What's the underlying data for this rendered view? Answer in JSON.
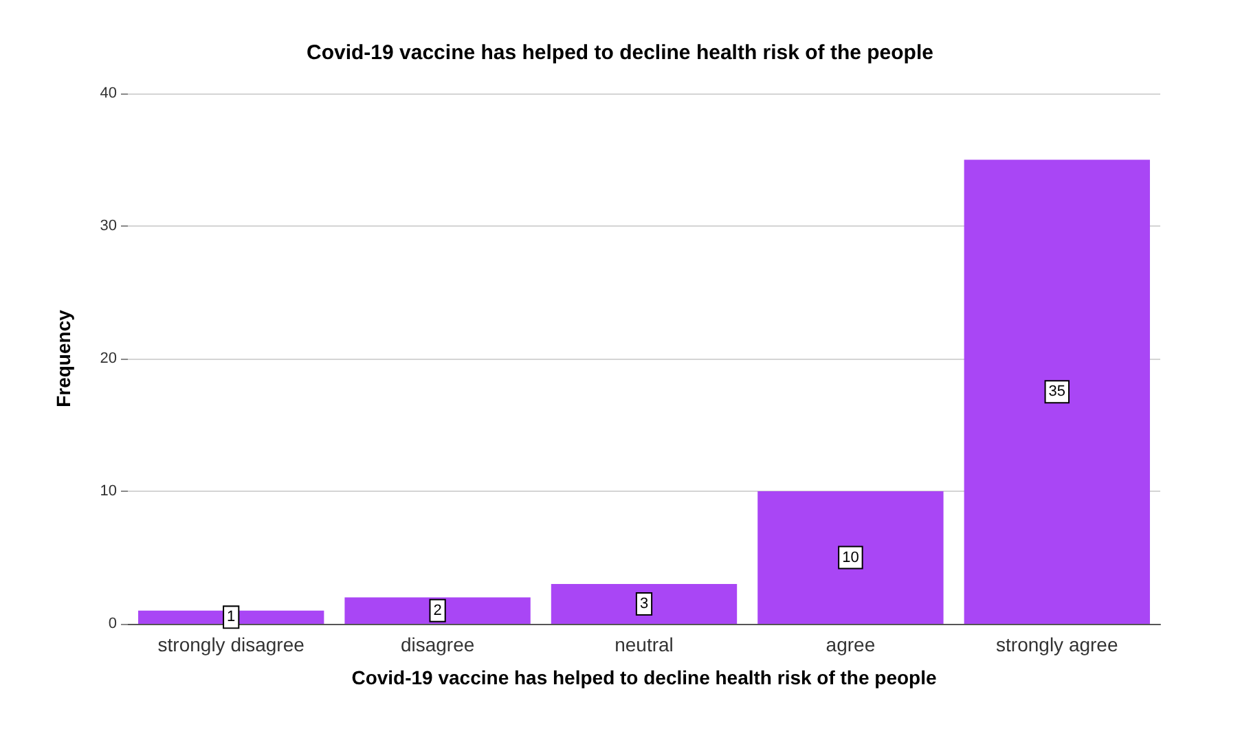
{
  "chart_data": {
    "type": "bar",
    "title": "Covid-19 vaccine has helped to decline health risk of the people",
    "xlabel": "Covid-19 vaccine has helped to decline health risk of the people",
    "ylabel": "Frequency",
    "categories": [
      "strongly disagree",
      "disagree",
      "neutral",
      "agree",
      "strongly agree"
    ],
    "values": [
      1,
      2,
      3,
      10,
      35
    ],
    "color": "#a946f5",
    "ylim": [
      0,
      40
    ],
    "yticks": [
      0,
      10,
      20,
      30,
      40
    ],
    "grid": "y",
    "data_labels": true
  }
}
